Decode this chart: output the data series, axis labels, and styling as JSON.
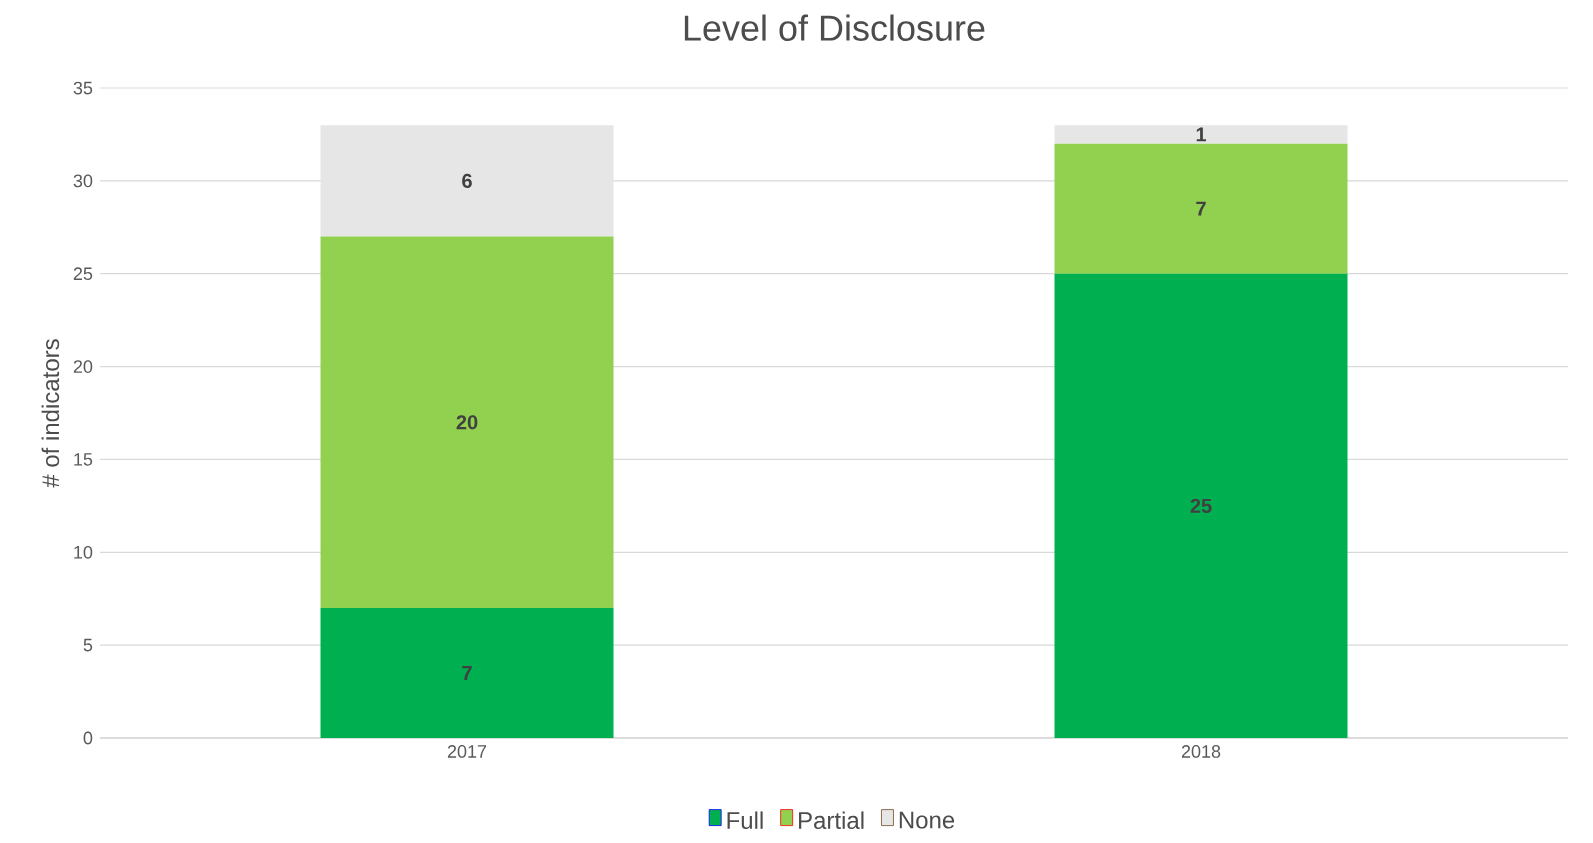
{
  "chart_data": {
    "type": "bar",
    "title": "Level of Disclosure",
    "ylabel": "# of indicators",
    "categories": [
      "2017",
      "2018"
    ],
    "series": [
      {
        "name": "Full",
        "color": "#00b050",
        "values": [
          7,
          25
        ]
      },
      {
        "name": "Partial",
        "color": "#92d050",
        "values": [
          20,
          7
        ]
      },
      {
        "name": "None",
        "color": "#e7e6e6",
        "values": [
          6,
          1
        ]
      }
    ],
    "stacked": true,
    "ylim": [
      0,
      35
    ],
    "yticks": [
      0,
      5,
      10,
      15,
      20,
      25,
      30,
      35
    ],
    "grid": "y",
    "legend": "bottom",
    "data_labels": true
  }
}
